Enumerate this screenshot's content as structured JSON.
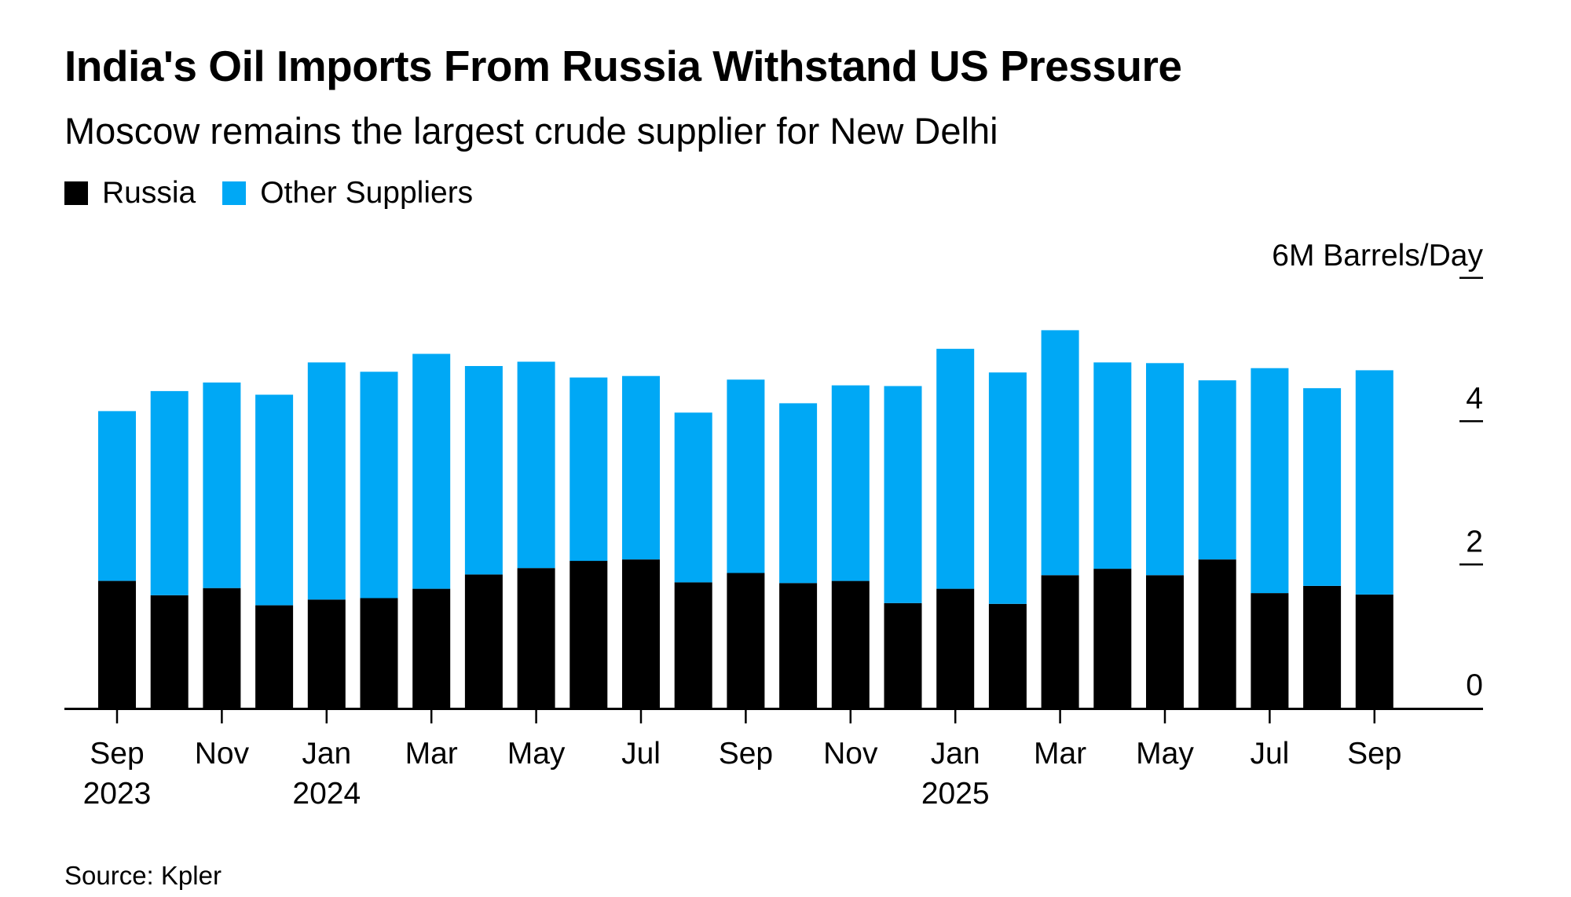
{
  "chart_data": {
    "type": "bar",
    "stacked": true,
    "title": "India's Oil Imports From Russia Withstand US Pressure",
    "subtitle": "Moscow remains the largest crude supplier for New Delhi",
    "unit_label": "6M Barrels/Day",
    "categories": [
      "Sep 2023",
      "Oct 2023",
      "Nov 2023",
      "Dec 2023",
      "Jan 2024",
      "Feb 2024",
      "Mar 2024",
      "Apr 2024",
      "May 2024",
      "Jun 2024",
      "Jul 2024",
      "Aug 2024",
      "Sep 2024",
      "Oct 2024",
      "Nov 2024",
      "Dec 2024",
      "Jan 2025",
      "Feb 2025",
      "Mar 2025",
      "Apr 2025",
      "May 2025",
      "Jun 2025",
      "Jul 2025",
      "Aug 2025",
      "Sep 2025"
    ],
    "series": [
      {
        "name": "Russia",
        "color": "#000000",
        "values": [
          1.77,
          1.57,
          1.67,
          1.43,
          1.51,
          1.53,
          1.66,
          1.86,
          1.95,
          2.05,
          2.07,
          1.75,
          1.88,
          1.74,
          1.77,
          1.46,
          1.66,
          1.45,
          1.85,
          1.94,
          1.85,
          2.07,
          1.6,
          1.7,
          1.58
        ]
      },
      {
        "name": "Other Suppliers",
        "color": "#00a8f5",
        "values": [
          2.37,
          2.85,
          2.87,
          2.94,
          3.31,
          3.16,
          3.28,
          2.91,
          2.88,
          2.56,
          2.56,
          2.37,
          2.7,
          2.51,
          2.73,
          3.03,
          3.35,
          3.23,
          3.42,
          2.88,
          2.96,
          2.5,
          3.14,
          2.76,
          3.13
        ]
      }
    ],
    "x_tick_labels": [
      {
        "category": "Sep 2023",
        "month": "Sep",
        "year": "2023"
      },
      {
        "category": "Nov 2023",
        "month": "Nov",
        "year": ""
      },
      {
        "category": "Jan 2024",
        "month": "Jan",
        "year": "2024"
      },
      {
        "category": "Mar 2024",
        "month": "Mar",
        "year": ""
      },
      {
        "category": "May 2024",
        "month": "May",
        "year": ""
      },
      {
        "category": "Jul 2024",
        "month": "Jul",
        "year": ""
      },
      {
        "category": "Sep 2024",
        "month": "Sep",
        "year": ""
      },
      {
        "category": "Nov 2024",
        "month": "Nov",
        "year": ""
      },
      {
        "category": "Jan 2025",
        "month": "Jan",
        "year": "2025"
      },
      {
        "category": "Mar 2025",
        "month": "Mar",
        "year": ""
      },
      {
        "category": "May 2025",
        "month": "May",
        "year": ""
      },
      {
        "category": "Jul 2025",
        "month": "Jul",
        "year": ""
      },
      {
        "category": "Sep 2025",
        "month": "Sep",
        "year": ""
      }
    ],
    "y_ticks": [
      {
        "value": 0,
        "label": "0"
      },
      {
        "value": 2,
        "label": "2"
      },
      {
        "value": 4,
        "label": "4"
      },
      {
        "value": 6,
        "label": "6M Barrels/Day"
      }
    ],
    "ylim": [
      0,
      6
    ],
    "legend_position": "top-left",
    "grid": false,
    "y_axis_side": "right"
  },
  "source": "Source: Kpler"
}
